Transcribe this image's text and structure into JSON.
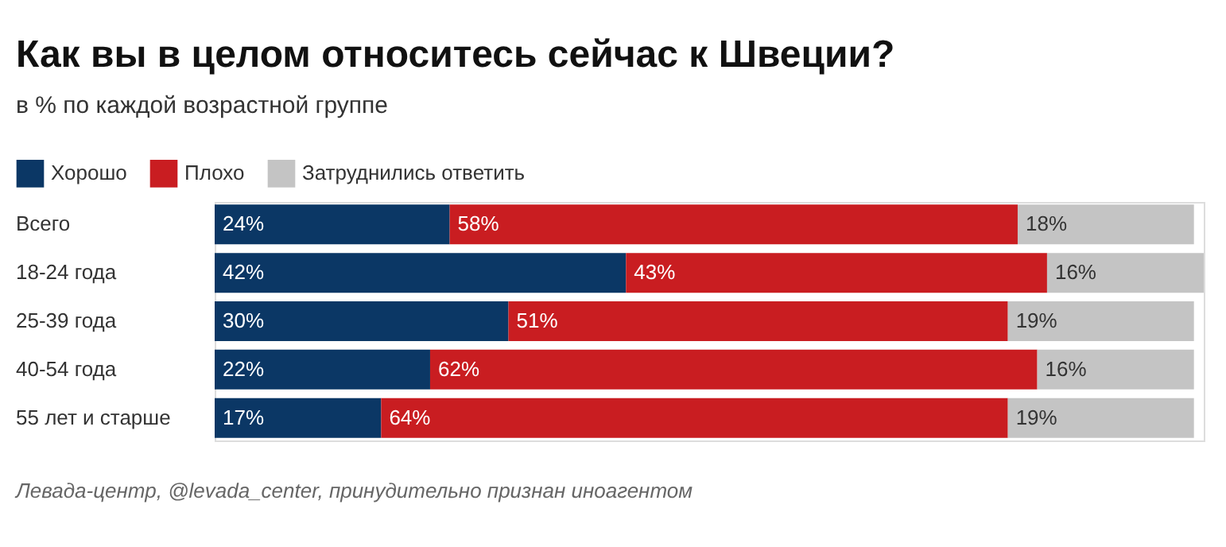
{
  "chart_data": {
    "type": "bar",
    "orientation": "horizontal",
    "stacked": true,
    "legend": "top left",
    "title": "Как вы в целом относитесь сейчас к Швеции?",
    "subtitle": "в % по каждой возрастной группе",
    "categories": [
      "Всего",
      "18-24 года",
      "25-39 года",
      "40-54 года",
      "55 лет и старше"
    ],
    "series": [
      {
        "name": "Хорошо",
        "color": "#0b3765",
        "values": [
          24,
          42,
          30,
          22,
          17
        ],
        "value_labels": [
          "24%",
          "42%",
          "30%",
          "22%",
          "17%"
        ]
      },
      {
        "name": "Плохо",
        "color": "#c91d21",
        "values": [
          58,
          43,
          51,
          62,
          64
        ],
        "value_labels": [
          "58%",
          "43%",
          "51%",
          "62%",
          "64%"
        ]
      },
      {
        "name": "Затруднились ответить",
        "color": "#c4c4c4",
        "values": [
          18,
          16,
          19,
          16,
          19
        ],
        "value_labels": [
          "18%",
          "16%",
          "19%",
          "16%",
          "19%"
        ]
      }
    ],
    "annotations": [
      "Левада-центр, @levada_center, принудительно признан иноагентом"
    ]
  }
}
